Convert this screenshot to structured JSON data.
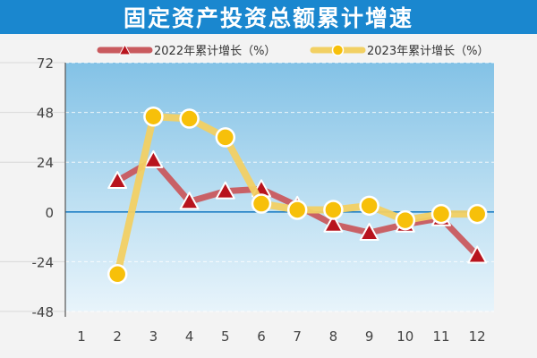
{
  "chart_data": {
    "type": "line",
    "title": "固定资产投资总额累计增速",
    "categories": [
      "1",
      "2",
      "3",
      "4",
      "5",
      "6",
      "7",
      "8",
      "9",
      "10",
      "11",
      "12"
    ],
    "y_ticks": [
      "72",
      "48",
      "24",
      "0",
      "-24",
      "-48"
    ],
    "ylim": [
      -48,
      72
    ],
    "grid": true,
    "legend_position": "top",
    "series": [
      {
        "name": "2022年累计增长（%）",
        "marker": "triangle",
        "color": "#c95a5e",
        "marker_color": "#b8141e",
        "values": [
          null,
          15,
          25,
          5,
          10,
          11,
          3,
          -6,
          -10,
          -6,
          -3,
          -21
        ]
      },
      {
        "name": "2023年累计增长（%）",
        "marker": "circle",
        "color": "#f2d063",
        "marker_color": "#f7c00a",
        "values": [
          null,
          -30,
          46,
          45,
          36,
          4,
          1,
          1,
          3,
          -4,
          -1,
          -1
        ]
      }
    ]
  }
}
